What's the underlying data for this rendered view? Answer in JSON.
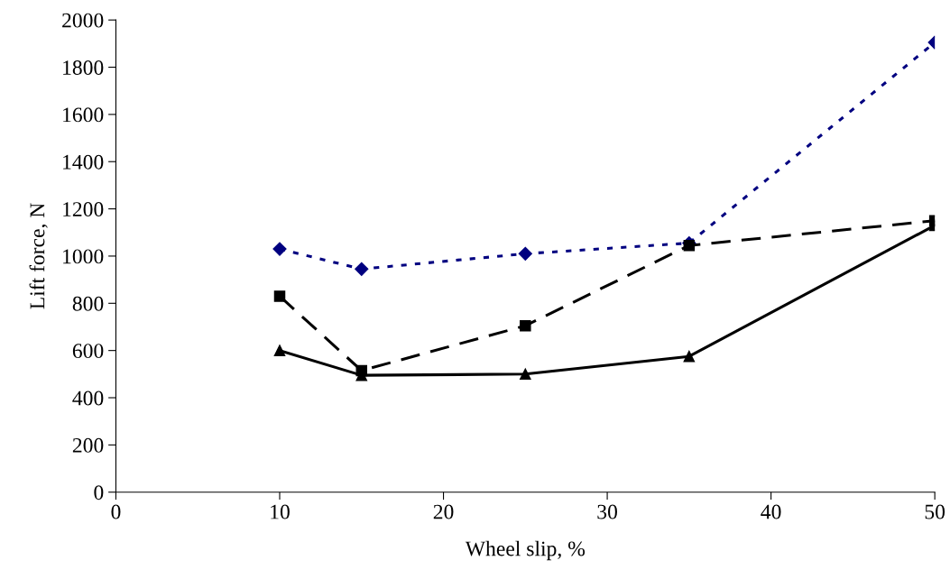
{
  "chart_data": {
    "type": "line",
    "xlabel": "Wheel slip, %",
    "ylabel": "Lift force, N",
    "x": [
      10,
      15,
      25,
      35,
      50
    ],
    "series": [
      {
        "color": "#000080",
        "values": [
          1030,
          945,
          1010,
          1055,
          1905
        ],
        "marker": "diamond",
        "line_style": "dotted"
      },
      {
        "color": "#000000",
        "values": [
          830,
          515,
          705,
          1045,
          1150
        ],
        "marker": "square",
        "line_style": "dashed"
      },
      {
        "color": "#000000",
        "values": [
          600,
          495,
          500,
          575,
          1130
        ],
        "marker": "triangle",
        "line_style": "solid"
      }
    ],
    "xlim": [
      0,
      50
    ],
    "xticks": [
      0,
      10,
      20,
      30,
      40,
      50
    ],
    "ylim": [
      0,
      2000
    ],
    "yticks": [
      0,
      200,
      400,
      600,
      800,
      1000,
      1200,
      1400,
      1600,
      1800,
      2000
    ],
    "grid": false
  }
}
